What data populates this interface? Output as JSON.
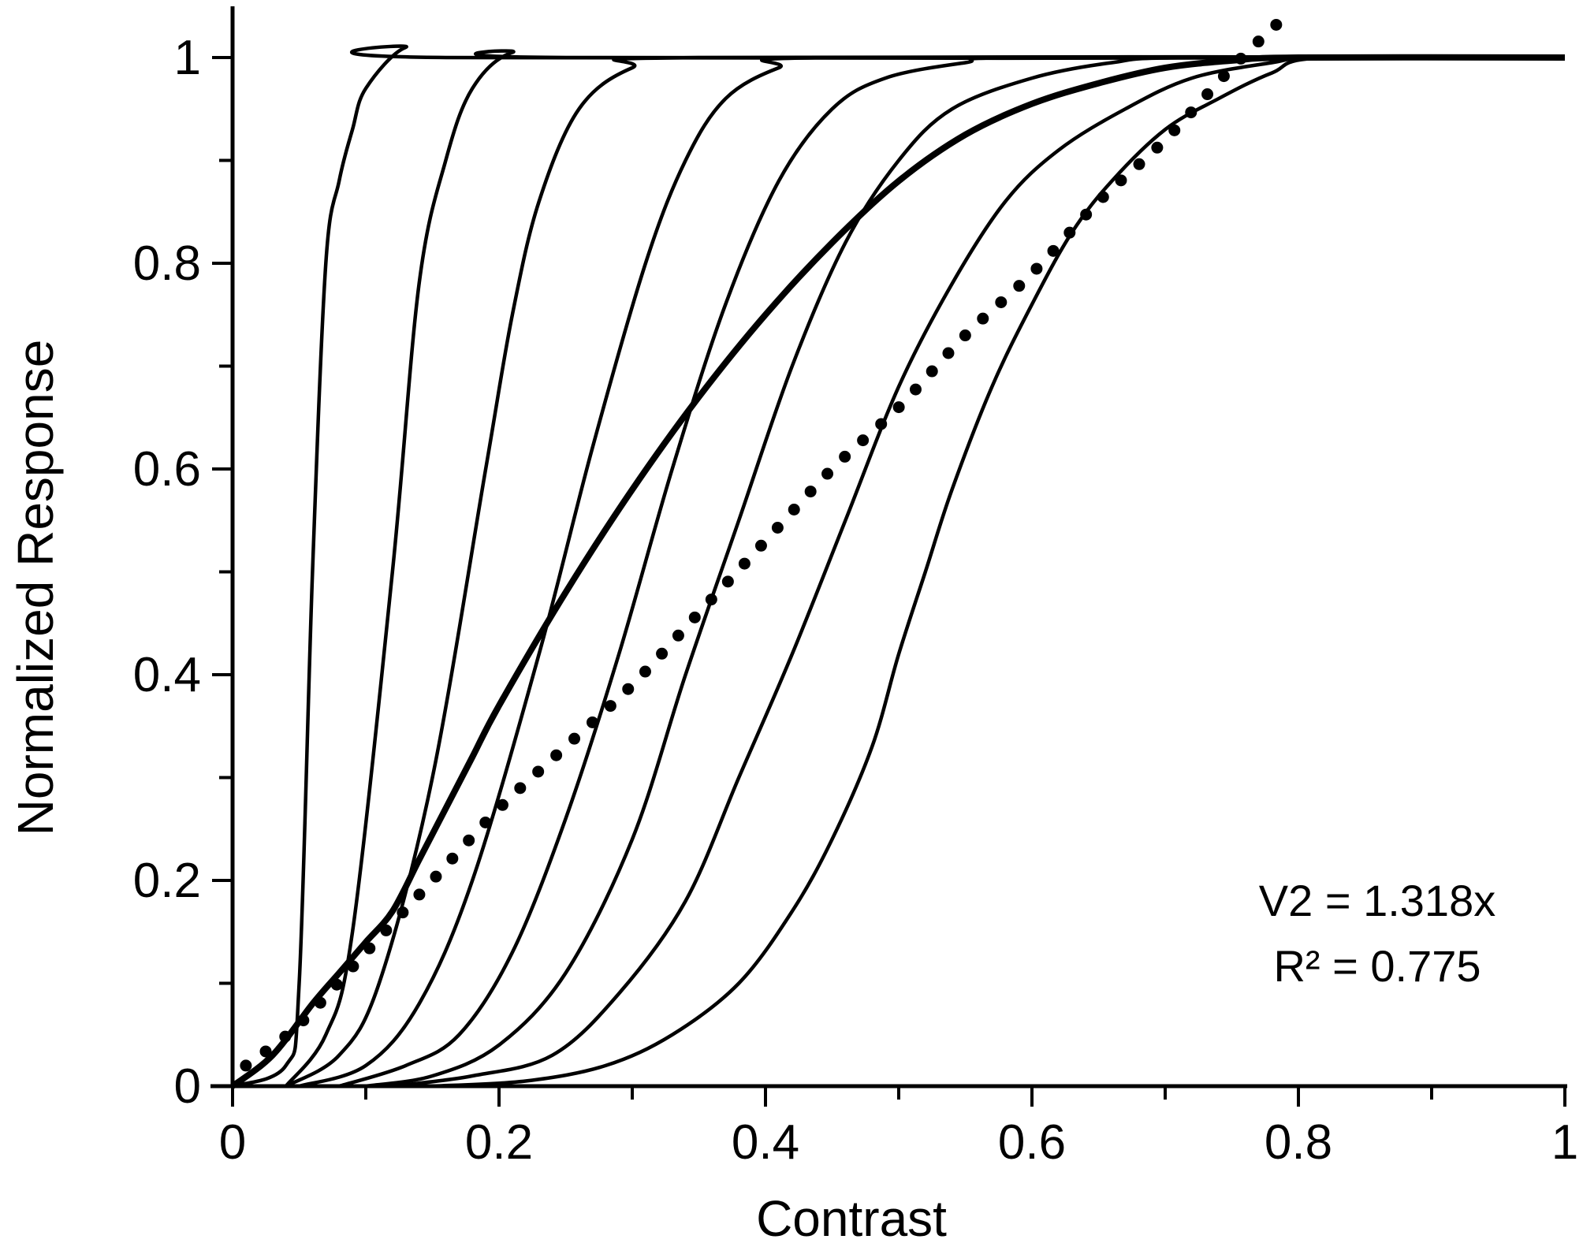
{
  "chart_data": {
    "type": "line",
    "title": "",
    "xlabel": "Contrast",
    "ylabel": "Normalized Response",
    "xlim": [
      0,
      1
    ],
    "ylim": [
      0,
      1
    ],
    "x_ticks": [
      0,
      0.2,
      0.4,
      0.6,
      0.8,
      1
    ],
    "x_tick_labels": [
      "0",
      "0.2",
      "0.4",
      "0.6",
      "0.8",
      "1"
    ],
    "y_ticks": [
      0,
      0.2,
      0.4,
      0.6,
      0.8,
      1
    ],
    "y_tick_labels": [
      "0",
      "0.2",
      "0.4",
      "0.6",
      "0.8",
      "1"
    ],
    "x_minor_step": 0.1,
    "y_minor_step": 0.1,
    "grid": false,
    "legend": "none",
    "annotations": [
      "V2 = 1.318x",
      "R² = 0.775"
    ],
    "series": [
      {
        "style": "thin",
        "points": [
          [
            0,
            0
          ],
          [
            0.04,
            0.02
          ],
          [
            0.05,
            0.1
          ],
          [
            0.06,
            0.5
          ],
          [
            0.07,
            0.8
          ],
          [
            0.08,
            0.88
          ],
          [
            0.09,
            0.93
          ],
          [
            0.1,
            0.97
          ],
          [
            0.13,
            1.01
          ],
          [
            0.16,
            1
          ],
          [
            1,
            1
          ]
        ]
      },
      {
        "style": "thin",
        "points": [
          [
            0.04,
            0
          ],
          [
            0.07,
            0.05
          ],
          [
            0.09,
            0.15
          ],
          [
            0.12,
            0.5
          ],
          [
            0.14,
            0.78
          ],
          [
            0.16,
            0.9
          ],
          [
            0.18,
            0.97
          ],
          [
            0.21,
            1.005
          ],
          [
            0.25,
            1
          ],
          [
            1,
            1
          ]
        ]
      },
      {
        "style": "thin",
        "points": [
          [
            0.04,
            0
          ],
          [
            0.08,
            0.03
          ],
          [
            0.11,
            0.1
          ],
          [
            0.15,
            0.3
          ],
          [
            0.19,
            0.6
          ],
          [
            0.21,
            0.75
          ],
          [
            0.23,
            0.86
          ],
          [
            0.26,
            0.95
          ],
          [
            0.3,
            0.99
          ],
          [
            0.35,
            1
          ],
          [
            1,
            1
          ]
        ]
      },
      {
        "style": "thin",
        "points": [
          [
            0.05,
            0
          ],
          [
            0.1,
            0.02
          ],
          [
            0.14,
            0.08
          ],
          [
            0.18,
            0.2
          ],
          [
            0.23,
            0.42
          ],
          [
            0.27,
            0.62
          ],
          [
            0.31,
            0.8
          ],
          [
            0.34,
            0.9
          ],
          [
            0.37,
            0.96
          ],
          [
            0.41,
            0.99
          ],
          [
            0.45,
            1
          ],
          [
            1,
            1
          ]
        ]
      },
      {
        "style": "thin",
        "points": [
          [
            0.08,
            0
          ],
          [
            0.13,
            0.02
          ],
          [
            0.17,
            0.05
          ],
          [
            0.21,
            0.13
          ],
          [
            0.25,
            0.26
          ],
          [
            0.29,
            0.42
          ],
          [
            0.33,
            0.6
          ],
          [
            0.37,
            0.76
          ],
          [
            0.41,
            0.88
          ],
          [
            0.45,
            0.95
          ],
          [
            0.49,
            0.98
          ],
          [
            0.55,
            0.995
          ],
          [
            0.6,
            1
          ],
          [
            1,
            1
          ]
        ]
      },
      {
        "style": "thin",
        "points": [
          [
            0.1,
            0
          ],
          [
            0.15,
            0.01
          ],
          [
            0.2,
            0.04
          ],
          [
            0.25,
            0.11
          ],
          [
            0.3,
            0.24
          ],
          [
            0.34,
            0.4
          ],
          [
            0.38,
            0.55
          ],
          [
            0.42,
            0.7
          ],
          [
            0.46,
            0.82
          ],
          [
            0.5,
            0.9
          ],
          [
            0.54,
            0.95
          ],
          [
            0.6,
            0.98
          ],
          [
            0.66,
            0.995
          ],
          [
            0.72,
            1
          ],
          [
            1,
            1
          ]
        ]
      },
      {
        "style": "thin",
        "points": [
          [
            0.12,
            0
          ],
          [
            0.18,
            0.01
          ],
          [
            0.24,
            0.03
          ],
          [
            0.29,
            0.09
          ],
          [
            0.34,
            0.18
          ],
          [
            0.38,
            0.3
          ],
          [
            0.42,
            0.42
          ],
          [
            0.46,
            0.55
          ],
          [
            0.5,
            0.68
          ],
          [
            0.54,
            0.78
          ],
          [
            0.58,
            0.86
          ],
          [
            0.62,
            0.91
          ],
          [
            0.67,
            0.95
          ],
          [
            0.72,
            0.98
          ],
          [
            0.78,
            0.995
          ],
          [
            0.82,
            1
          ],
          [
            1,
            1
          ]
        ]
      },
      {
        "style": "thin",
        "points": [
          [
            0.15,
            0
          ],
          [
            0.22,
            0.005
          ],
          [
            0.28,
            0.02
          ],
          [
            0.33,
            0.05
          ],
          [
            0.38,
            0.1
          ],
          [
            0.42,
            0.17
          ],
          [
            0.45,
            0.24
          ],
          [
            0.48,
            0.33
          ],
          [
            0.5,
            0.42
          ],
          [
            0.52,
            0.5
          ],
          [
            0.54,
            0.58
          ],
          [
            0.57,
            0.68
          ],
          [
            0.6,
            0.76
          ],
          [
            0.63,
            0.83
          ],
          [
            0.66,
            0.88
          ],
          [
            0.7,
            0.93
          ],
          [
            0.74,
            0.96
          ],
          [
            0.78,
            0.985
          ],
          [
            0.82,
            1
          ],
          [
            1,
            1
          ]
        ]
      },
      {
        "style": "bold",
        "points": [
          [
            0,
            0
          ],
          [
            0.03,
            0.03
          ],
          [
            0.06,
            0.08
          ],
          [
            0.08,
            0.11
          ],
          [
            0.1,
            0.14
          ],
          [
            0.12,
            0.17
          ],
          [
            0.14,
            0.22
          ],
          [
            0.16,
            0.27
          ],
          [
            0.18,
            0.32
          ],
          [
            0.2,
            0.37
          ],
          [
            0.25,
            0.48
          ],
          [
            0.3,
            0.58
          ],
          [
            0.35,
            0.67
          ],
          [
            0.4,
            0.75
          ],
          [
            0.45,
            0.82
          ],
          [
            0.5,
            0.88
          ],
          [
            0.55,
            0.925
          ],
          [
            0.6,
            0.955
          ],
          [
            0.65,
            0.975
          ],
          [
            0.7,
            0.99
          ],
          [
            0.75,
            0.997
          ],
          [
            0.8,
            1
          ],
          [
            1,
            1
          ]
        ]
      },
      {
        "style": "dotted",
        "points": [
          [
            0.01,
            0.02
          ],
          [
            0.05,
            0.06
          ],
          [
            0.1,
            0.13
          ],
          [
            0.15,
            0.2
          ],
          [
            0.2,
            0.27
          ],
          [
            0.25,
            0.33
          ],
          [
            0.3,
            0.39
          ],
          [
            0.35,
            0.46
          ],
          [
            0.4,
            0.53
          ],
          [
            0.45,
            0.6
          ],
          [
            0.5,
            0.66
          ],
          [
            0.55,
            0.73
          ],
          [
            0.6,
            0.79
          ],
          [
            0.65,
            0.86
          ],
          [
            0.7,
            0.92
          ],
          [
            0.75,
            0.99
          ],
          [
            0.79,
            1.04
          ]
        ]
      }
    ]
  }
}
